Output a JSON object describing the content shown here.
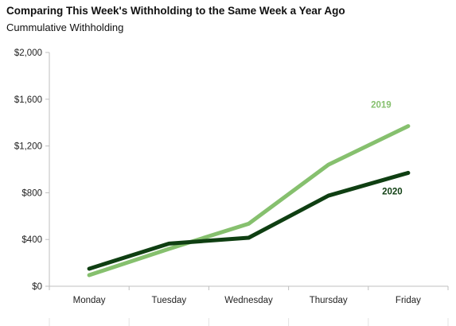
{
  "chart_data": {
    "type": "line",
    "title": "Comparing This Week's Withholding to the Same Week a Year Ago",
    "subtitle": "Cummulative Withholding",
    "categories": [
      "Monday",
      "Tuesday",
      "Wednesday",
      "Thursday",
      "Friday"
    ],
    "yticks": [
      "$0",
      "$400",
      "$800",
      "$1,200",
      "$1,600",
      "$2,000"
    ],
    "ylim": [
      0,
      2000
    ],
    "grid": false,
    "legend": "inline labels near line ends",
    "series": [
      {
        "name": "2019",
        "color": "#86c06e",
        "values": [
          95,
          320,
          535,
          1040,
          1370
        ]
      },
      {
        "name": "2020",
        "color": "#0f3f12",
        "values": [
          150,
          365,
          415,
          775,
          970
        ]
      }
    ]
  }
}
